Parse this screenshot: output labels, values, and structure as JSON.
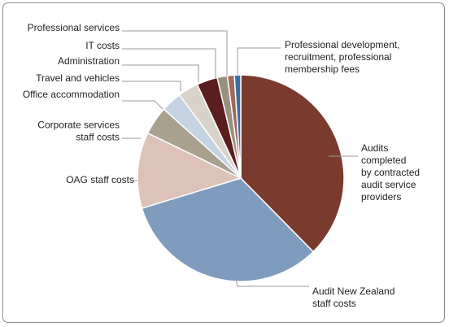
{
  "chart_data": {
    "type": "pie",
    "title": "",
    "slices": [
      {
        "label": [
          "Audits",
          "completed",
          "by contracted",
          "audit service",
          "providers"
        ],
        "value": 38.0,
        "color": "#7a3b2e"
      },
      {
        "label": [
          "Audit New Zealand",
          "staff costs"
        ],
        "value": 33.0,
        "color": "#7f9bbd"
      },
      {
        "label": [
          "OAG staff costs"
        ],
        "value": 12.0,
        "color": "#dcc2b8"
      },
      {
        "label": [
          "Corporate services",
          "staff costs"
        ],
        "value": 4.5,
        "color": "#a9a08e"
      },
      {
        "label": [
          "Office accommodation"
        ],
        "value": 3.3,
        "color": "#c5d2e2"
      },
      {
        "label": [
          "Travel and vehicles"
        ],
        "value": 3.2,
        "color": "#d8d2c8"
      },
      {
        "label": [
          "Administration"
        ],
        "value": 3.3,
        "color": "#5a1e1e"
      },
      {
        "label": [
          "IT costs"
        ],
        "value": 1.6,
        "color": "#999080"
      },
      {
        "label": [
          "Professional services"
        ],
        "value": 1.1,
        "color": "#a3695c"
      },
      {
        "label": [
          "Professional development,",
          "recruitment, professional",
          "membership fees"
        ],
        "value": 1.0,
        "color": "#3a6fa8"
      }
    ]
  }
}
